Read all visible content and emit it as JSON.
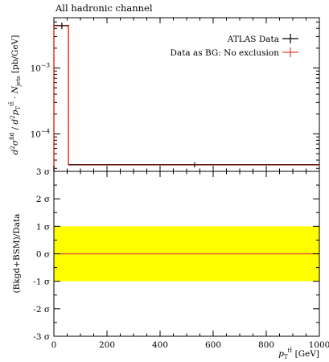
{
  "title": "All hadronic channel",
  "legend": {
    "placement": "top-right",
    "items": [
      {
        "label": "ATLAS Data",
        "color": "#000000",
        "marker": "cross"
      },
      {
        "label": "Data as BG: No exclusion",
        "color": "#e8402e",
        "marker": "cross"
      }
    ]
  },
  "chart_data": [
    {
      "type": "line",
      "panel": "main",
      "log_scale_y": true,
      "ylim": [
        2.7e-05,
        0.0058
      ],
      "xlim": [
        0,
        1000
      ],
      "ylabel": "d²σ^fid / d²p_T^tt̄ · N_jets [pb/GeV]",
      "yticks": [
        {
          "value": 0.001,
          "label": "10",
          "exp": "−3"
        },
        {
          "value": 0.0001,
          "label": "10",
          "exp": "−4"
        }
      ],
      "series": [
        {
          "name": "ATLAS Data",
          "color": "#000000",
          "points": [
            {
              "x": 30,
              "y": 0.0044,
              "xerr": [
                0,
                55
              ],
              "yerr": [
                0.0039,
                0.0049
              ]
            },
            {
              "x": 530,
              "y": 3.4e-05,
              "xerr": [
                55,
                1000
              ],
              "yerr": [
                3.1e-05,
                3.7e-05
              ]
            }
          ]
        },
        {
          "name": "Data as BG: No exclusion",
          "color": "#e8402e",
          "bins": [
            {
              "xlow": 0,
              "xhigh": 55,
              "y": 0.0044
            },
            {
              "xlow": 55,
              "xhigh": 1000,
              "y": 3.4e-05
            }
          ]
        }
      ]
    },
    {
      "type": "line",
      "panel": "ratio",
      "ylim": [
        -3,
        3
      ],
      "xlim": [
        0,
        1000
      ],
      "ylabel": "(Bkgd+BSM)/Data",
      "xlabel": "p_T^tt̄ [GeV]",
      "xticks": [
        0,
        200,
        400,
        600,
        800,
        1000
      ],
      "yticks": [
        {
          "value": 3,
          "label": "3 σ"
        },
        {
          "value": 2,
          "label": "2 σ"
        },
        {
          "value": 1,
          "label": "1 σ"
        },
        {
          "value": 0,
          "label": "0 σ"
        },
        {
          "value": -1,
          "label": "-1 σ"
        },
        {
          "value": -2,
          "label": "-2 σ"
        },
        {
          "value": -3,
          "label": "-3 σ"
        }
      ],
      "band": {
        "low": -1,
        "high": 1,
        "color": "#ffff00"
      },
      "line": {
        "y": 0,
        "color": "#e8402e"
      }
    }
  ]
}
